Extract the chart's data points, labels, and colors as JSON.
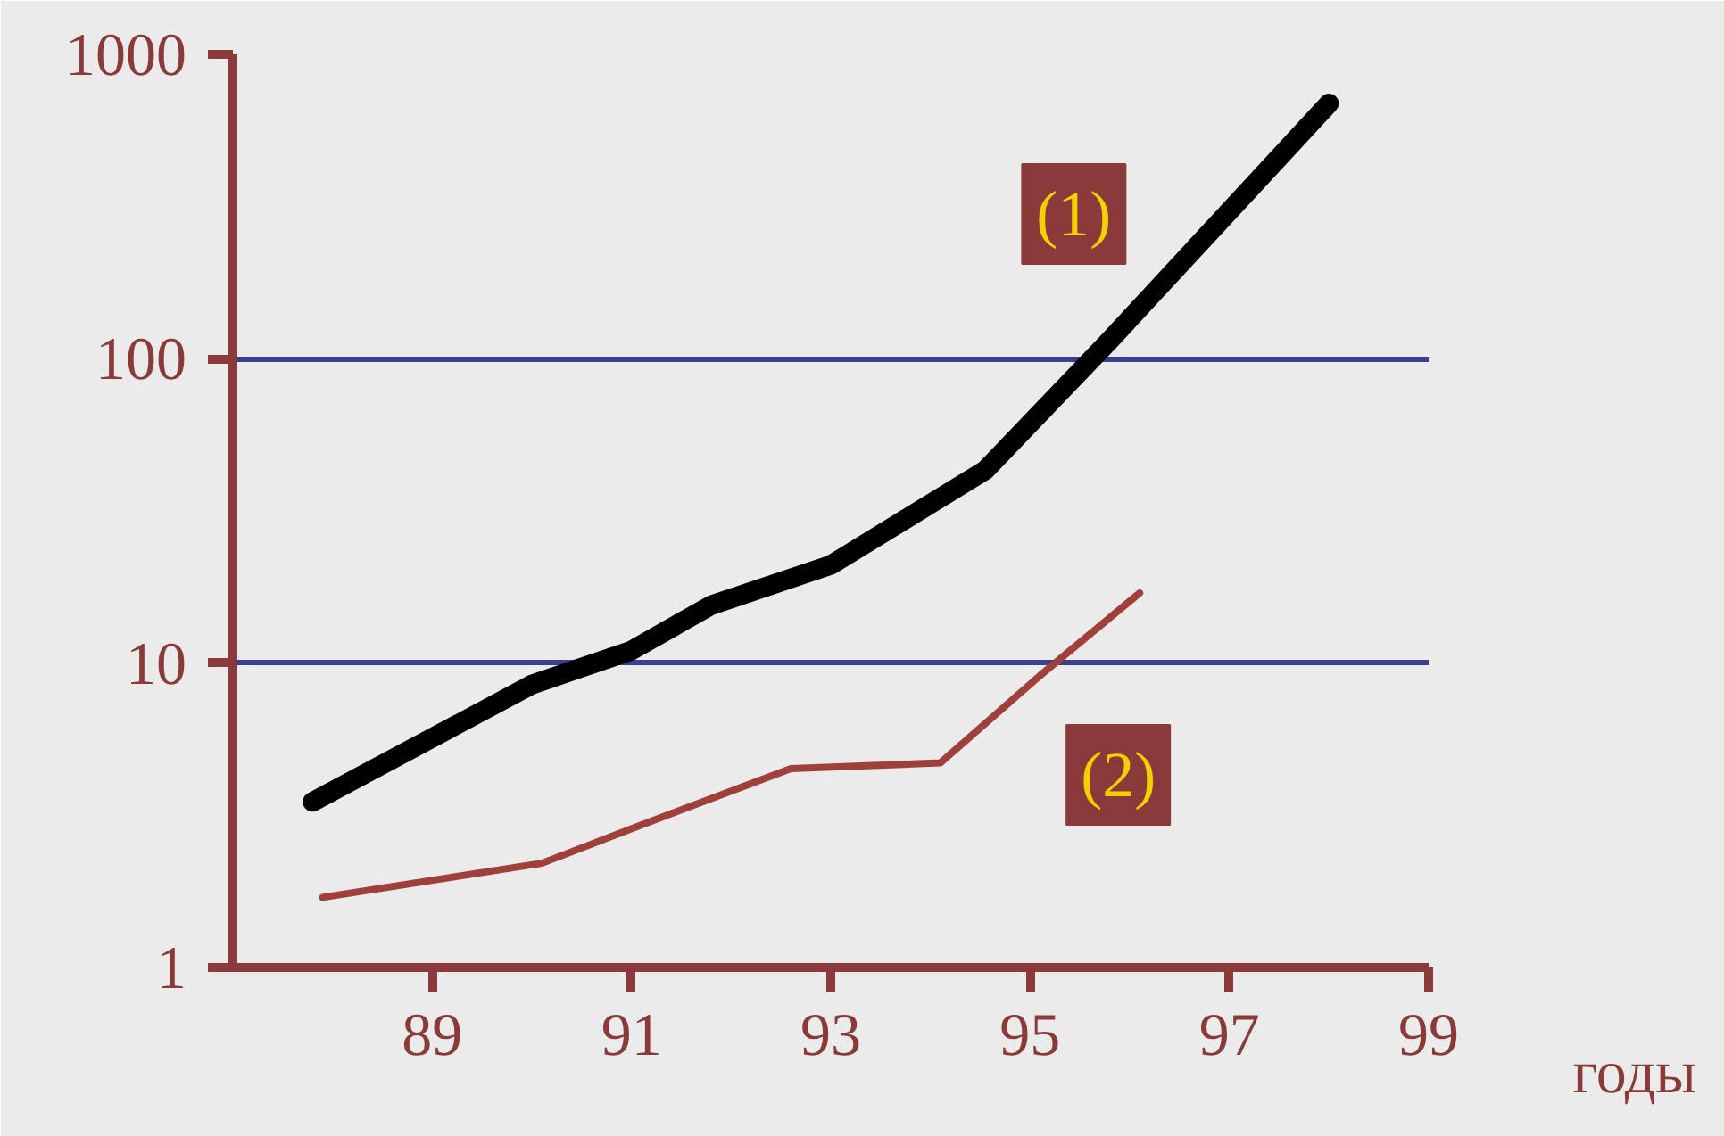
{
  "chart_data": {
    "type": "line",
    "xlabel": "годы",
    "log": "y",
    "grid": "y",
    "marker": "none",
    "line_style": "solid",
    "xlim": [
      87,
      99
    ],
    "xticks": [
      89,
      91,
      93,
      95,
      97,
      99
    ],
    "ylim": [
      1,
      1000
    ],
    "yticks": [
      1,
      10,
      100,
      1000
    ],
    "series": [
      {
        "color": "#000000",
        "x": [
          87.8,
          90.0,
          91.0,
          91.8,
          93.0,
          94.55,
          95.8,
          98.0
        ],
        "values": [
          3.5,
          8.5,
          11,
          15.5,
          21,
          43,
          115,
          690
        ]
      },
      {
        "color": "#a0403a",
        "x": [
          87.9,
          90.1,
          91.05,
          92.6,
          94.1,
          95.1,
          96.1
        ],
        "values": [
          1.7,
          2.2,
          2.9,
          4.5,
          4.7,
          9.1,
          17
        ]
      }
    ],
    "annotations": [
      "(1)",
      "(2)"
    ]
  }
}
